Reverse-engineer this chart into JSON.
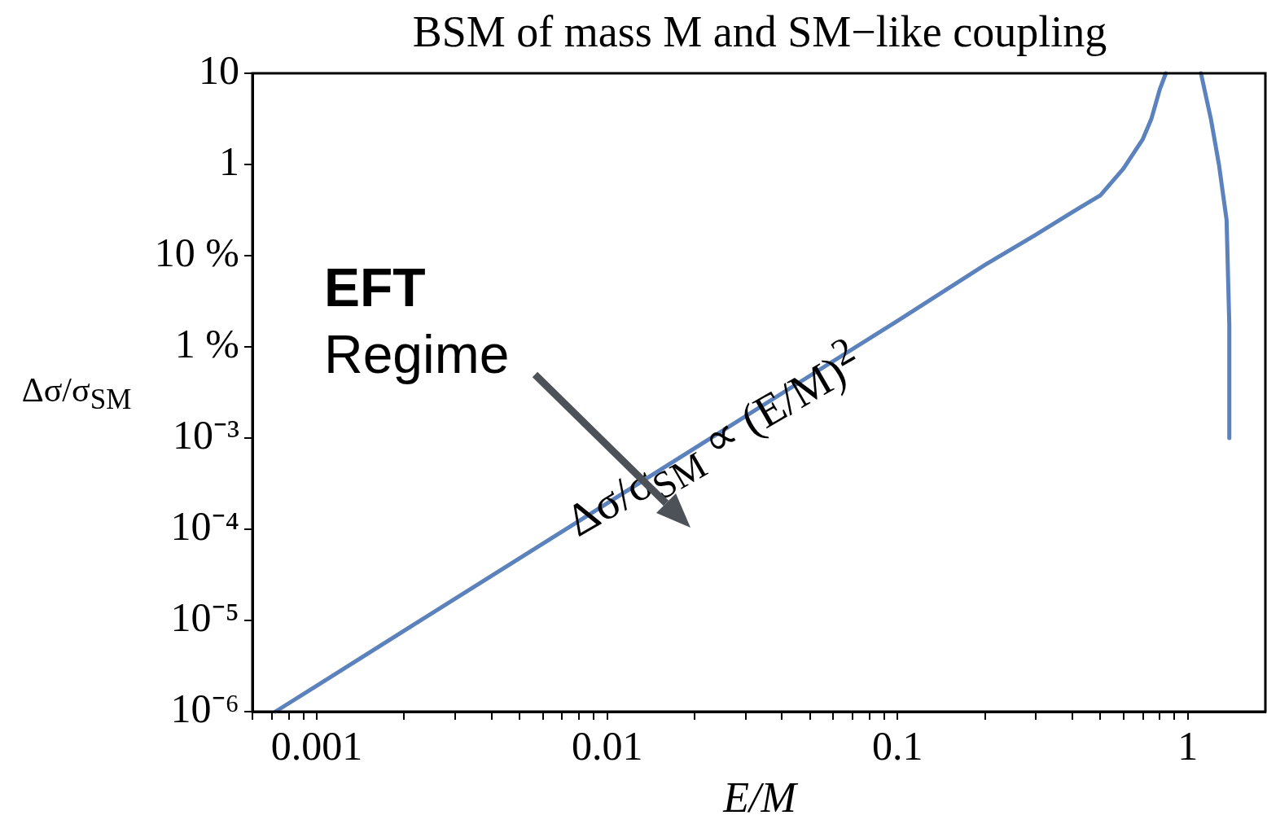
{
  "chart_data": {
    "type": "line",
    "title": "BSM of mass M and SM−like coupling",
    "xlabel": "E/M",
    "ylabel": "Δσ/σ$_{SM}$",
    "log": "xy",
    "grid": false,
    "legend": false,
    "marker": "none",
    "line_style": "solid",
    "xlim": [
      0.0006,
      1.85
    ],
    "ylim": [
      1e-06,
      10
    ],
    "xticks": [
      {
        "value": 0.0006,
        "label": null
      },
      {
        "value": 0.0007,
        "label": null
      },
      {
        "value": 0.0008,
        "label": null
      },
      {
        "value": 0.0009,
        "label": null
      },
      0.001,
      {
        "value": 0.002,
        "label": null
      },
      {
        "value": 0.003,
        "label": null
      },
      {
        "value": 0.004,
        "label": null
      },
      {
        "value": 0.005,
        "label": null
      },
      {
        "value": 0.006,
        "label": null
      },
      {
        "value": 0.007,
        "label": null
      },
      {
        "value": 0.008,
        "label": null
      },
      {
        "value": 0.009,
        "label": null
      },
      0.01,
      {
        "value": 0.02,
        "label": null
      },
      {
        "value": 0.03,
        "label": null
      },
      {
        "value": 0.04,
        "label": null
      },
      {
        "value": 0.05,
        "label": null
      },
      {
        "value": 0.06,
        "label": null
      },
      {
        "value": 0.07,
        "label": null
      },
      {
        "value": 0.08,
        "label": null
      },
      {
        "value": 0.09,
        "label": null
      },
      0.1,
      {
        "value": 0.2,
        "label": null
      },
      {
        "value": 0.3,
        "label": null
      },
      {
        "value": 0.4,
        "label": null
      },
      {
        "value": 0.5,
        "label": null
      },
      {
        "value": 0.6,
        "label": null
      },
      {
        "value": 0.7,
        "label": null
      },
      {
        "value": 0.8,
        "label": null
      },
      {
        "value": 0.9,
        "label": null
      },
      1
    ],
    "yticks": [
      {
        "value": 1e-06,
        "label": "10⁻⁶"
      },
      {
        "value": 1e-05,
        "label": "10⁻⁵"
      },
      {
        "value": 0.0001,
        "label": "10⁻⁴"
      },
      {
        "value": 0.001,
        "label": "10⁻³"
      },
      {
        "value": 0.01,
        "label": "1 %"
      },
      {
        "value": 0.1,
        "label": "10 %"
      },
      1,
      10
    ],
    "series": [
      {
        "color": "#5b82bc",
        "x": [
          0.00072,
          0.001,
          0.003,
          0.01,
          0.03,
          0.1,
          0.2,
          0.3,
          0.4,
          0.5,
          0.6,
          0.7,
          0.75,
          0.8,
          0.84
        ],
        "values": [
          1e-06,
          1.93e-06,
          1.74e-05,
          0.000193,
          0.00174,
          0.0193,
          0.079,
          0.17,
          0.3,
          0.46,
          0.9,
          1.9,
          3.2,
          6.6,
          10
        ]
      },
      {
        "color": "#5b82bc",
        "x": [
          1.11,
          1.2,
          1.28,
          1.36,
          1.39,
          1.39
        ],
        "values": [
          10,
          3.2,
          1,
          0.247,
          0.0171,
          0.001
        ]
      }
    ],
    "annotations": [
      "EFT\nRegime",
      "Δσ/σ$_{SM}$ ∝ (E/M)$^{2}$"
    ]
  }
}
